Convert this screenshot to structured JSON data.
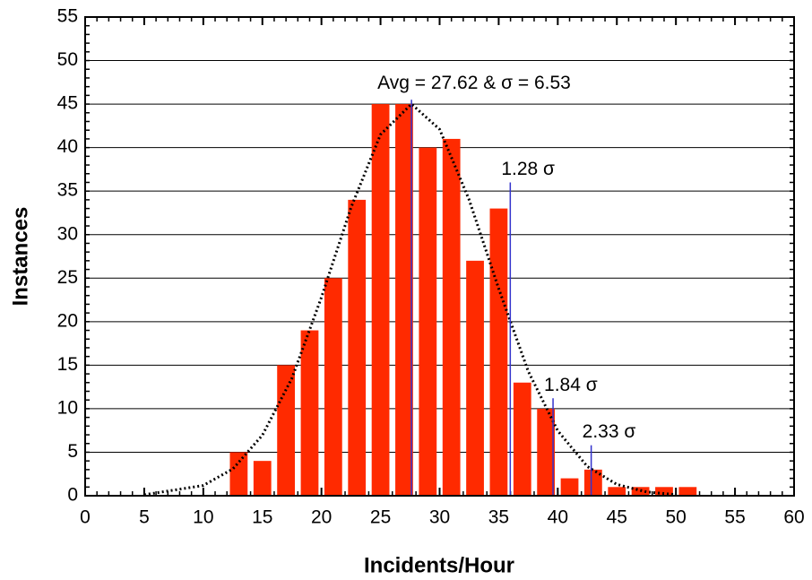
{
  "chart_data": {
    "type": "bar",
    "x_label": "Incidents/Hour",
    "y_label": "Instances",
    "x": [
      13,
      15,
      17,
      19,
      21,
      23,
      25,
      27,
      29,
      31,
      33,
      35,
      37,
      39,
      41,
      43,
      45,
      47,
      49,
      51
    ],
    "values": [
      5,
      4,
      15,
      19,
      25,
      34,
      45,
      45,
      40,
      41,
      27,
      33,
      13,
      10,
      2,
      3,
      1,
      1,
      1,
      1
    ],
    "color": "#ff2a00",
    "fit": {
      "x": [
        5,
        10,
        12.5,
        15,
        17.5,
        20,
        22.5,
        25,
        27.62,
        30,
        32.5,
        35,
        37.5,
        40,
        42.5,
        45,
        47.5,
        50
      ],
      "values": [
        0.11,
        1.18,
        3.08,
        6.95,
        13.5,
        22.8,
        33.1,
        41.5,
        45,
        42.1,
        34.0,
        23.8,
        14.3,
        7.46,
        3.36,
        1.3,
        0.44,
        0.13
      ],
      "color": "#000000"
    },
    "reference_lines": [
      {
        "label": "Avg = 27.62  &  σ = 6.53",
        "x": 27.62,
        "top": 45.5
      },
      {
        "label": "1.28 σ",
        "x": 35.98,
        "top": 36
      },
      {
        "label": "1.84 σ",
        "x": 39.6,
        "top": 11.2
      },
      {
        "label": "2.33 σ",
        "x": 42.83,
        "top": 5.8
      }
    ],
    "reference_color": "#3333cc",
    "xlim": [
      0,
      60
    ],
    "xticks": [
      0,
      5,
      10,
      15,
      20,
      25,
      30,
      35,
      40,
      45,
      50,
      55,
      60
    ],
    "ylim": [
      0,
      55
    ],
    "yticks": [
      0,
      5,
      10,
      15,
      20,
      25,
      30,
      35,
      40,
      45,
      50,
      55
    ],
    "grid": true
  }
}
